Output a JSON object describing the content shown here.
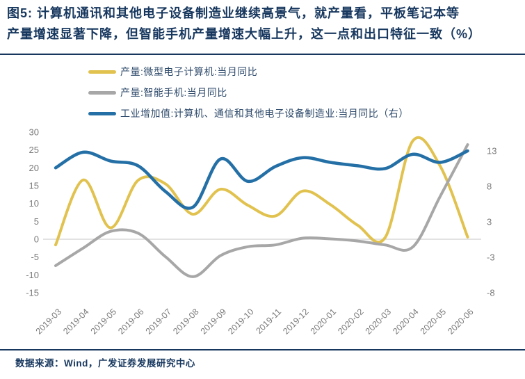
{
  "title": {
    "line1": "图5: 计算机通讯和其他电子设备制造业继续高景气，就产量看，平板笔记本等",
    "line2": "产量增速显著下降，但智能手机产量增速大幅上升，这一点和出口特征一致（%）"
  },
  "source": {
    "text": "数据来源：Wind，广发证券发展研究中心"
  },
  "colors": {
    "title_navy": "#17375E",
    "axis_text_gray": "#7A7A7A",
    "zero_line_gray": "#D9D9D9",
    "series_yellow": "#E1C24F",
    "series_gray": "#A7A7A7",
    "series_blue": "#2470A6"
  },
  "chart_data": {
    "type": "line",
    "smooth": true,
    "grid": "zero-line-only",
    "legend_position": "top-left",
    "categories": [
      "2019-03",
      "2019-04",
      "2019-05",
      "2019-06",
      "2019-07",
      "2019-08",
      "2019-09",
      "2019-10",
      "2019-11",
      "2019-12",
      "2020-01",
      "2020-02",
      "2020-03",
      "2020-04",
      "2020-05",
      "2020-06"
    ],
    "series": [
      {
        "name": "产量:微型电子计算机:当月同比",
        "axis": "left",
        "color": "#E1C24F",
        "values": [
          -1.6,
          16.6,
          3.2,
          16.5,
          15.5,
          7.0,
          14.0,
          9.5,
          6.5,
          13.5,
          9.7,
          3.9,
          0.5,
          27.5,
          20.5,
          0.6
        ]
      },
      {
        "name": "产量:智能手机:当月同比",
        "axis": "left",
        "color": "#A7A7A7",
        "values": [
          -7.4,
          -2.5,
          2.2,
          1.7,
          -4.9,
          -10.5,
          -4.6,
          -2.1,
          -1.6,
          0.3,
          0.1,
          -0.5,
          -1.6,
          -2.2,
          12.0,
          26.5
        ]
      },
      {
        "name": "工业增加值:计算机、通信和其他电子设备制造业:当月同比（右）",
        "axis": "right",
        "color": "#2470A6",
        "values": [
          10.5,
          12.8,
          11.5,
          10.8,
          7.0,
          4.7,
          11.8,
          8.5,
          10.7,
          12.0,
          11.3,
          10.8,
          10.4,
          12.5,
          11.3,
          13.0
        ]
      }
    ],
    "left_axis": {
      "ticks": [
        30,
        25,
        20,
        15,
        10,
        5,
        0,
        -5,
        -10,
        -15
      ],
      "range": [
        -15,
        30
      ]
    },
    "right_axis": {
      "ticks": [
        13,
        8,
        3,
        -3,
        -8
      ]
    }
  }
}
